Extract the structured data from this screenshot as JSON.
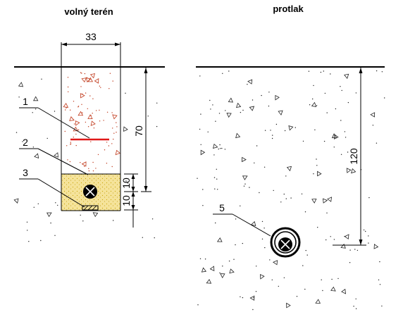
{
  "titles": {
    "left": "volný terén",
    "right": "protlak"
  },
  "left_section": {
    "width_dimension": "33",
    "depth_dimension": "70",
    "bedding_top": "10",
    "bedding_bottom": "10",
    "callouts": [
      "1",
      "2",
      "3"
    ]
  },
  "right_section": {
    "depth_dimension": "120",
    "callouts": [
      "5"
    ]
  },
  "colors": {
    "line": "#000000",
    "backfill_dots": "#c0391b",
    "warning_tape": "#e01818",
    "sand_bedding": "#f5e39a"
  }
}
